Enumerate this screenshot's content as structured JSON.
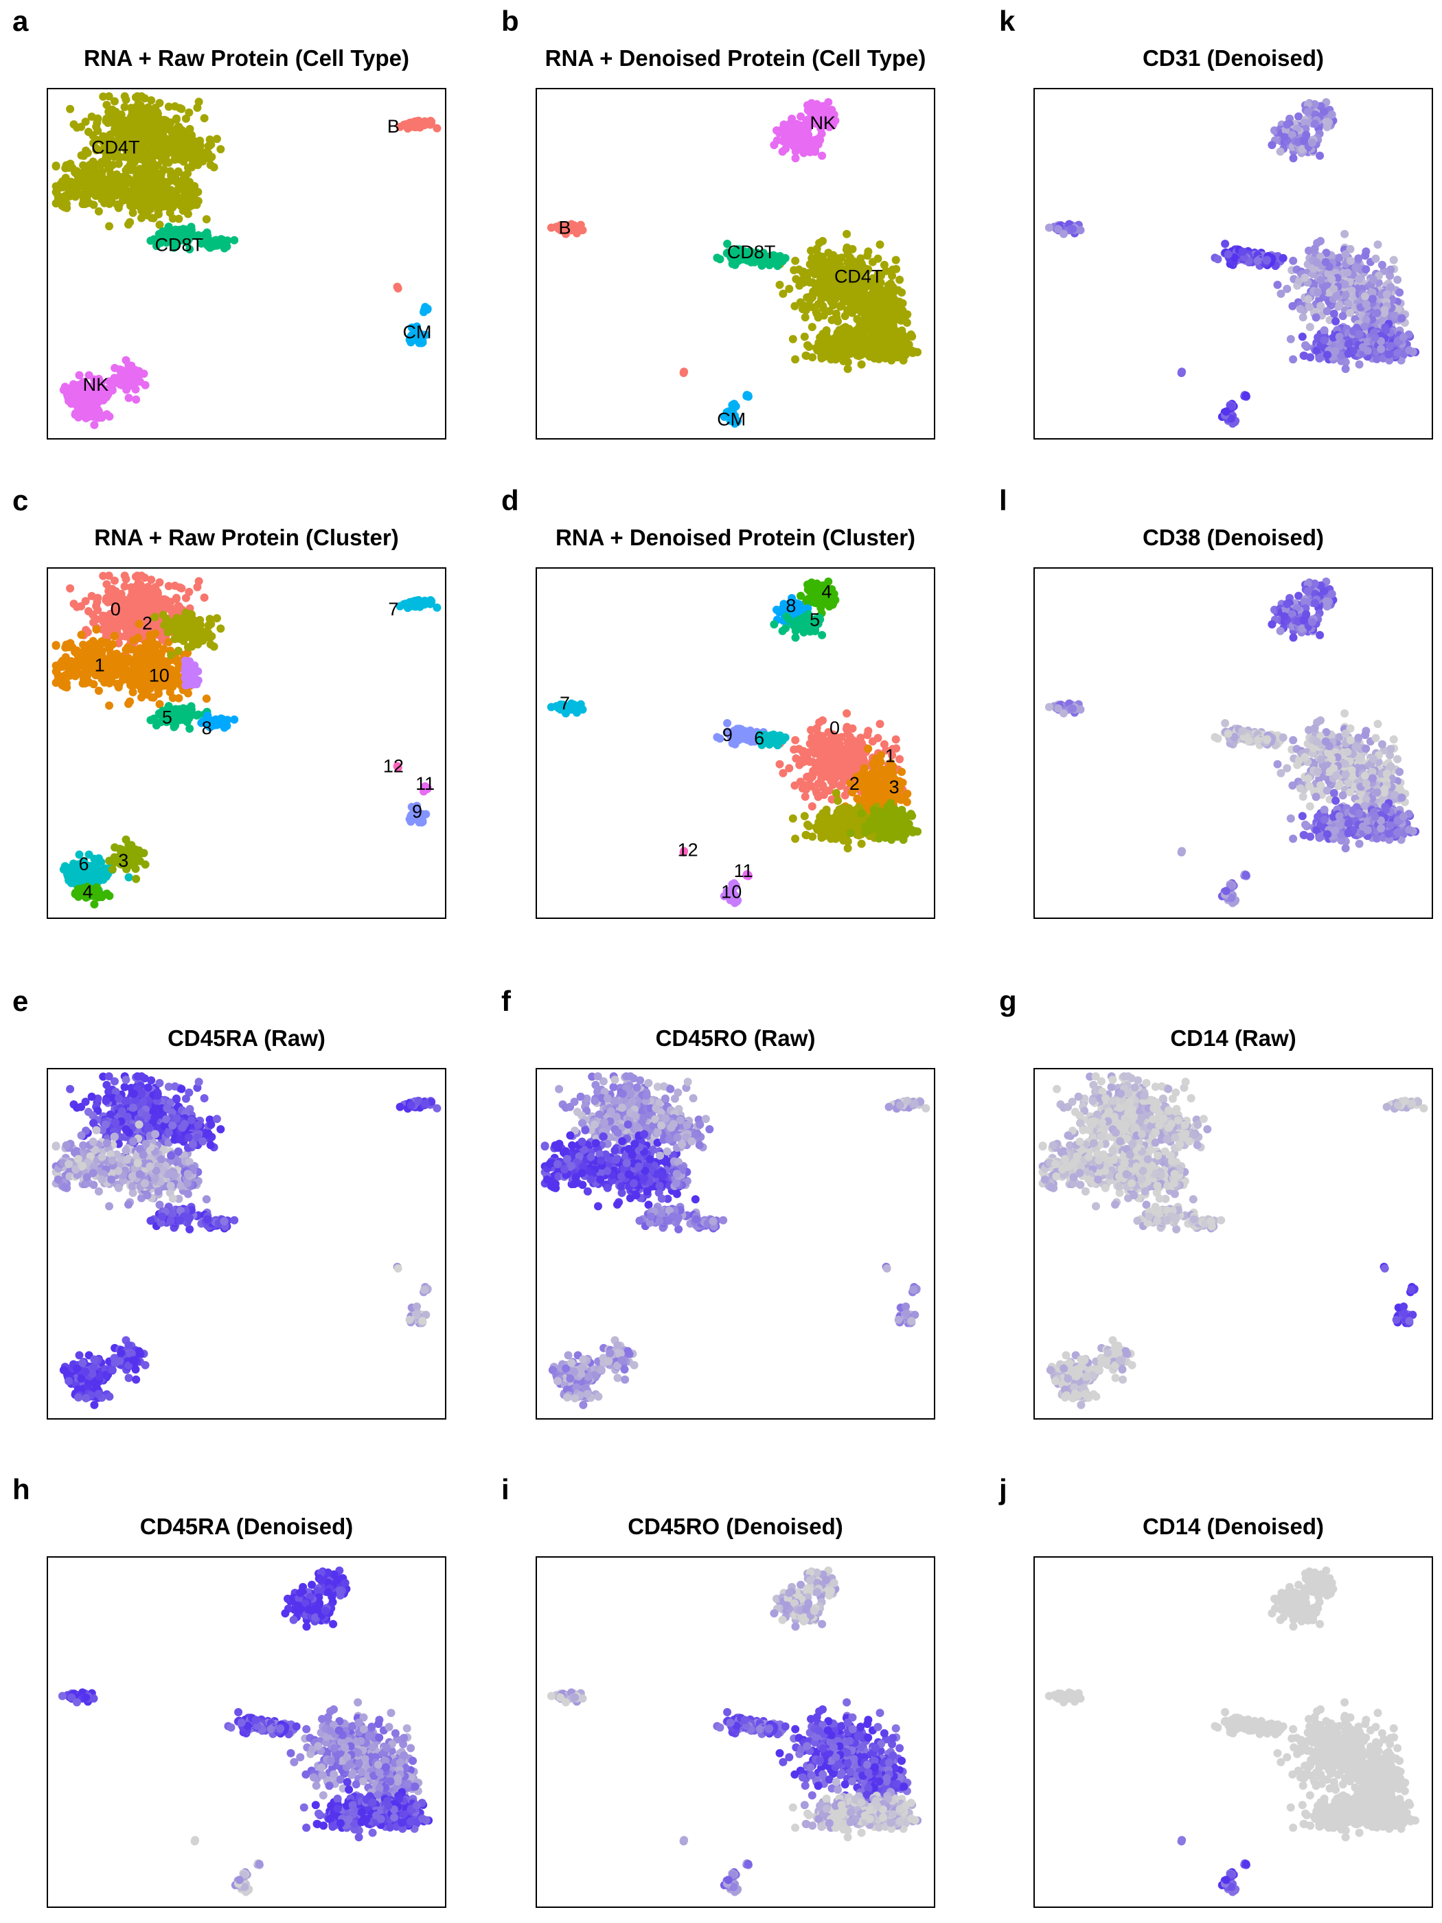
{
  "panels": [
    {
      "id": "a",
      "letter": "a",
      "title": "RNA + Raw Protein (Cell Type)",
      "mode": "cat",
      "layout": "raw",
      "group": "type",
      "labels": [
        "CD4T",
        "B",
        "CD8T",
        "CM",
        "NK"
      ]
    },
    {
      "id": "b",
      "letter": "b",
      "title": "RNA + Denoised Protein (Cell Type)",
      "mode": "cat",
      "layout": "den",
      "group": "type",
      "labels": [
        "NK",
        "B",
        "CD8T",
        "CD4T",
        "CM"
      ]
    },
    {
      "id": "k",
      "letter": "k",
      "title": "CD31 (Denoised)",
      "mode": "expr",
      "layout": "den",
      "marker": "CD31d"
    },
    {
      "id": "c",
      "letter": "c",
      "title": "RNA + Raw Protein (Cluster)",
      "mode": "cat",
      "layout": "raw",
      "group": "cluster",
      "labels": [
        "0",
        "2",
        "1",
        "10",
        "7",
        "5",
        "8",
        "12",
        "11",
        "9",
        "6",
        "3",
        "4"
      ]
    },
    {
      "id": "d",
      "letter": "d",
      "title": "RNA + Denoised Protein (Cluster)",
      "mode": "cat",
      "layout": "den",
      "group": "cluster",
      "labels": [
        "8",
        "4",
        "5",
        "7",
        "9",
        "6",
        "0",
        "1",
        "2",
        "3",
        "12",
        "11",
        "10"
      ]
    },
    {
      "id": "l",
      "letter": "l",
      "title": "CD38 (Denoised)",
      "mode": "expr",
      "layout": "den",
      "marker": "CD38d"
    },
    {
      "id": "e",
      "letter": "e",
      "title": "CD45RA (Raw)",
      "mode": "expr",
      "layout": "raw",
      "marker": "CD45RA"
    },
    {
      "id": "f",
      "letter": "f",
      "title": "CD45RO (Raw)",
      "mode": "expr",
      "layout": "raw",
      "marker": "CD45RO"
    },
    {
      "id": "g",
      "letter": "g",
      "title": "CD14 (Raw)",
      "mode": "expr",
      "layout": "raw",
      "marker": "CD14"
    },
    {
      "id": "h",
      "letter": "h",
      "title": "CD45RA (Denoised)",
      "mode": "expr",
      "layout": "den",
      "marker": "CD45RAd"
    },
    {
      "id": "i",
      "letter": "i",
      "title": "CD45RO (Denoised)",
      "mode": "expr",
      "layout": "den",
      "marker": "CD45ROd"
    },
    {
      "id": "j",
      "letter": "j",
      "title": "CD14 (Denoised)",
      "mode": "expr",
      "layout": "den",
      "marker": "CD14d"
    }
  ],
  "colors": {
    "type": {
      "CD4T": "#A3A500",
      "B": "#F8766D",
      "CD8T": "#00BF7D",
      "CM": "#00B0F6",
      "NK": "#E76BF3"
    },
    "cluster": {
      "0": "#F8766D",
      "1": "#E58700",
      "2": "#A3A500",
      "3": "#8AA800",
      "4": "#39B600",
      "5": "#00BF7D",
      "6": "#00BFC4",
      "7": "#00BAE0",
      "8": "#00A9FF",
      "9": "#8494FF",
      "10": "#C77CFF",
      "11": "#E76BF3",
      "12": "#FF62BC"
    },
    "low": "#D3D3D3",
    "high": "#5533EE"
  }
}
